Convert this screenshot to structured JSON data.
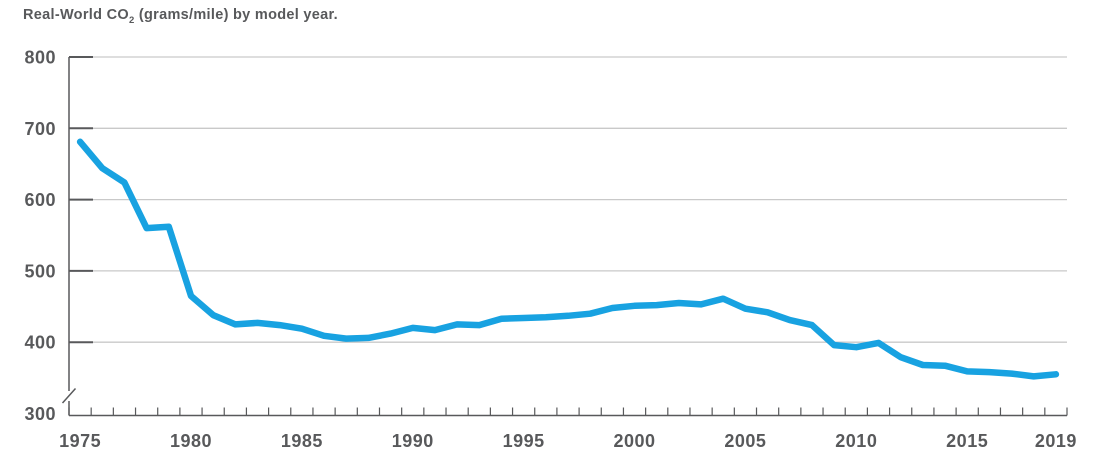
{
  "title": {
    "prefix": "Real-World CO",
    "subscript": "2",
    "suffix": " (grams/mile) by model year."
  },
  "colors": {
    "line": "#18A2E1",
    "axis_text": "#58595b",
    "axis_line": "#58595b",
    "gridline": "#c9c9c9",
    "background": "#ffffff"
  },
  "icons": {
    "axis_break": "diagonal-slash"
  },
  "chart_data": {
    "type": "line",
    "title": "Real-World CO2 (grams/mile) by model year.",
    "series_name": "Real-World CO2",
    "x": [
      1975,
      1976,
      1977,
      1978,
      1979,
      1980,
      1981,
      1982,
      1983,
      1984,
      1985,
      1986,
      1987,
      1988,
      1989,
      1990,
      1991,
      1992,
      1993,
      1994,
      1995,
      1996,
      1997,
      1998,
      1999,
      2000,
      2001,
      2002,
      2003,
      2004,
      2005,
      2006,
      2007,
      2008,
      2009,
      2010,
      2011,
      2012,
      2013,
      2014,
      2015,
      2016,
      2017,
      2018,
      2019
    ],
    "values": [
      681,
      644,
      624,
      560,
      562,
      465,
      438,
      425,
      427,
      424,
      419,
      409,
      405,
      406,
      412,
      420,
      417,
      425,
      424,
      433,
      434,
      435,
      437,
      440,
      448,
      451,
      452,
      455,
      453,
      461,
      447,
      442,
      431,
      424,
      396,
      393,
      399,
      379,
      368,
      367,
      359,
      358,
      356,
      352,
      355
    ],
    "xlabel": "",
    "ylabel": "",
    "ylim": [
      300,
      800
    ],
    "y_ticks": [
      300,
      400,
      500,
      600,
      700,
      800
    ],
    "x_tick_labels": [
      1975,
      1980,
      1985,
      1990,
      1995,
      2000,
      2005,
      2010,
      2015,
      2019
    ],
    "grid": "horizontal",
    "axis_break_at_origin": true,
    "legend": "none"
  }
}
